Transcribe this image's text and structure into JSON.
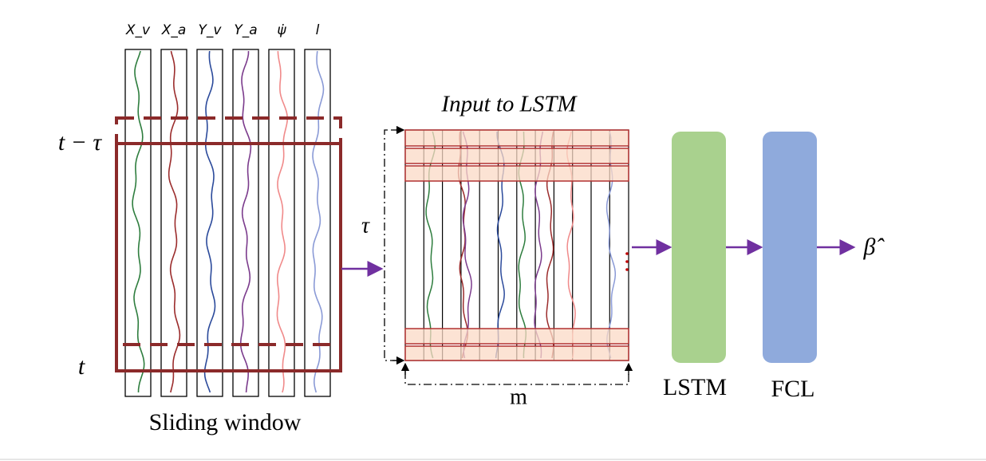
{
  "column_labels": [
    "X_v",
    "X_a",
    "Y_v",
    "Y_a",
    "ψ̇",
    "l"
  ],
  "window_labels": {
    "start": "t − τ",
    "end": "t"
  },
  "caption": "Sliding window",
  "input_title": "Input to LSTM",
  "tau": "τ",
  "m": "m",
  "blocks": [
    "LSTM",
    "FCL"
  ],
  "output": "β̂"
}
